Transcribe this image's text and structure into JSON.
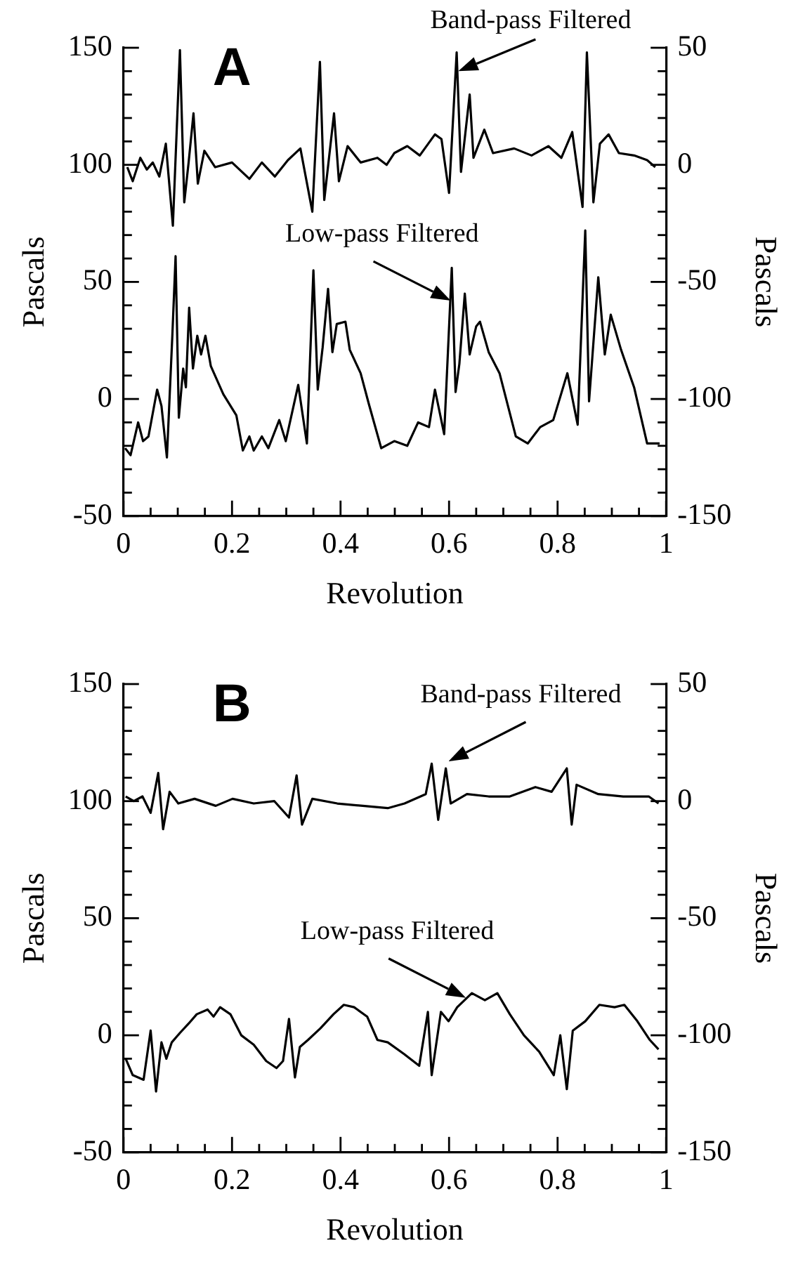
{
  "chart_data": [
    {
      "type": "line",
      "title": "A",
      "xlabel": "Revolution",
      "ylabel": "Pascals",
      "y2label": "Pascals",
      "xlim": [
        0,
        1
      ],
      "ylim": [
        -50,
        150
      ],
      "y2lim": [
        -150,
        50
      ],
      "xticks": [
        0,
        {
          "value": 0.05,
          "label": null
        },
        {
          "value": 0.1,
          "label": null
        },
        {
          "value": 0.15,
          "label": null
        },
        0.2,
        {
          "value": 0.25,
          "label": null
        },
        {
          "value": 0.3,
          "label": null
        },
        {
          "value": 0.35,
          "label": null
        },
        0.4,
        {
          "value": 0.45,
          "label": null
        },
        {
          "value": 0.5,
          "label": null
        },
        {
          "value": 0.55,
          "label": null
        },
        0.6,
        {
          "value": 0.65,
          "label": null
        },
        {
          "value": 0.7,
          "label": null
        },
        {
          "value": 0.75,
          "label": null
        },
        0.8,
        {
          "value": 0.85,
          "label": null
        },
        {
          "value": 0.9,
          "label": null
        },
        {
          "value": 0.95,
          "label": null
        },
        1
      ],
      "yticks": [
        -50,
        {
          "value": -40,
          "label": null
        },
        {
          "value": -30,
          "label": null
        },
        {
          "value": -20,
          "label": null
        },
        {
          "value": -10,
          "label": null
        },
        0,
        {
          "value": 10,
          "label": null
        },
        {
          "value": 20,
          "label": null
        },
        {
          "value": 30,
          "label": null
        },
        {
          "value": 40,
          "label": null
        },
        50,
        {
          "value": 60,
          "label": null
        },
        {
          "value": 70,
          "label": null
        },
        {
          "value": 80,
          "label": null
        },
        {
          "value": 90,
          "label": null
        },
        100,
        {
          "value": 110,
          "label": null
        },
        {
          "value": 120,
          "label": null
        },
        {
          "value": 130,
          "label": null
        },
        {
          "value": 140,
          "label": null
        },
        150
      ],
      "y2ticks": [
        -150,
        {
          "value": -140,
          "label": null
        },
        {
          "value": -130,
          "label": null
        },
        {
          "value": -120,
          "label": null
        },
        {
          "value": -110,
          "label": null
        },
        -100,
        {
          "value": -90,
          "label": null
        },
        {
          "value": -80,
          "label": null
        },
        {
          "value": -70,
          "label": null
        },
        {
          "value": -60,
          "label": null
        },
        -50,
        {
          "value": -40,
          "label": null
        },
        {
          "value": -30,
          "label": null
        },
        {
          "value": -20,
          "label": null
        },
        {
          "value": -10,
          "label": null
        },
        0,
        {
          "value": 10,
          "label": null
        },
        {
          "value": 20,
          "label": null
        },
        {
          "value": 30,
          "label": null
        },
        {
          "value": 40,
          "label": null
        },
        50
      ],
      "grid": false,
      "series": [
        {
          "color": "#000000",
          "x": [
            0.003,
            0.013,
            0.027,
            0.036,
            0.046,
            0.062,
            0.07,
            0.08,
            0.09,
            0.096,
            0.102,
            0.11,
            0.115,
            0.121,
            0.128,
            0.136,
            0.143,
            0.151,
            0.161,
            0.184,
            0.208,
            0.22,
            0.232,
            0.24,
            0.255,
            0.267,
            0.287,
            0.299,
            0.322,
            0.338,
            0.35,
            0.358,
            0.367,
            0.377,
            0.385,
            0.393,
            0.409,
            0.417,
            0.437,
            0.452,
            0.475,
            0.499,
            0.523,
            0.543,
            0.563,
            0.574,
            0.591,
            0.605,
            0.612,
            0.619,
            0.629,
            0.638,
            0.65,
            0.657,
            0.673,
            0.693,
            0.723,
            0.745,
            0.768,
            0.792,
            0.818,
            0.837,
            0.851,
            0.858,
            0.875,
            0.887,
            0.898,
            0.917,
            0.941,
            0.965,
            0.988
          ],
          "values": [
            -21,
            -24,
            -10,
            -18,
            -16,
            4,
            -3,
            -25,
            27,
            61,
            -8,
            13,
            5,
            39,
            13,
            27,
            19,
            27,
            14,
            2,
            -7,
            -22,
            -16,
            -22,
            -16,
            -21,
            -9,
            -18,
            6,
            -19,
            55,
            4,
            22,
            47,
            20,
            32,
            33,
            21,
            11,
            -2,
            -21,
            -18,
            -20,
            -10,
            -12,
            4,
            -15,
            56,
            3,
            15,
            45,
            19,
            31,
            33,
            20,
            11,
            -16,
            -19,
            -12,
            -9,
            11,
            -11,
            72,
            -1,
            52,
            19,
            36,
            21,
            5,
            -19,
            -19
          ]
        },
        {
          "color": "#000000",
          "axis": "y2",
          "x": [
            0.007,
            0.017,
            0.031,
            0.043,
            0.054,
            0.066,
            0.078,
            0.091,
            0.104,
            0.112,
            0.12,
            0.129,
            0.137,
            0.149,
            0.169,
            0.2,
            0.232,
            0.255,
            0.279,
            0.303,
            0.326,
            0.348,
            0.362,
            0.37,
            0.388,
            0.397,
            0.413,
            0.437,
            0.468,
            0.485,
            0.499,
            0.523,
            0.546,
            0.574,
            0.586,
            0.6,
            0.614,
            0.622,
            0.638,
            0.645,
            0.665,
            0.681,
            0.72,
            0.752,
            0.783,
            0.807,
            0.827,
            0.846,
            0.854,
            0.866,
            0.878,
            0.894,
            0.913,
            0.941,
            0.965,
            0.98
          ],
          "values": [
            -1,
            -7,
            3,
            -2,
            1,
            -5,
            9,
            -26,
            49,
            -16,
            1,
            22,
            -8,
            6,
            -1,
            1,
            -6,
            1,
            -5,
            2,
            7,
            -20,
            44,
            -15,
            22,
            -7,
            8,
            1,
            3,
            0,
            5,
            8,
            4,
            13,
            11,
            -12,
            48,
            -3,
            30,
            3,
            15,
            5,
            7,
            4,
            8,
            3,
            14,
            -18,
            48,
            -16,
            9,
            13,
            5,
            4,
            2,
            -1
          ]
        }
      ],
      "annotations": [
        {
          "text": "Band-pass Filtered",
          "x": 0.617,
          "y": 140
        },
        {
          "text": "Low-pass Filtered",
          "x": 0.603,
          "y": 42
        }
      ]
    },
    {
      "type": "line",
      "title": "B",
      "xlabel": "Revolution",
      "ylabel": "Pascals",
      "y2label": "Pascals",
      "xlim": [
        0,
        1
      ],
      "ylim": [
        -50,
        150
      ],
      "y2lim": [
        -150,
        50
      ],
      "xticks": [
        0,
        {
          "value": 0.05,
          "label": null
        },
        {
          "value": 0.1,
          "label": null
        },
        {
          "value": 0.15,
          "label": null
        },
        0.2,
        {
          "value": 0.25,
          "label": null
        },
        {
          "value": 0.3,
          "label": null
        },
        {
          "value": 0.35,
          "label": null
        },
        0.4,
        {
          "value": 0.45,
          "label": null
        },
        {
          "value": 0.5,
          "label": null
        },
        {
          "value": 0.55,
          "label": null
        },
        0.6,
        {
          "value": 0.65,
          "label": null
        },
        {
          "value": 0.7,
          "label": null
        },
        {
          "value": 0.75,
          "label": null
        },
        0.8,
        {
          "value": 0.85,
          "label": null
        },
        {
          "value": 0.9,
          "label": null
        },
        {
          "value": 0.95,
          "label": null
        },
        1
      ],
      "yticks": [
        -50,
        {
          "value": -40,
          "label": null
        },
        {
          "value": -30,
          "label": null
        },
        {
          "value": -20,
          "label": null
        },
        {
          "value": -10,
          "label": null
        },
        0,
        {
          "value": 10,
          "label": null
        },
        {
          "value": 20,
          "label": null
        },
        {
          "value": 30,
          "label": null
        },
        {
          "value": 40,
          "label": null
        },
        50,
        {
          "value": 60,
          "label": null
        },
        {
          "value": 70,
          "label": null
        },
        {
          "value": 80,
          "label": null
        },
        {
          "value": 90,
          "label": null
        },
        100,
        {
          "value": 110,
          "label": null
        },
        {
          "value": 120,
          "label": null
        },
        {
          "value": 130,
          "label": null
        },
        {
          "value": 140,
          "label": null
        },
        150
      ],
      "y2ticks": [
        -150,
        {
          "value": -140,
          "label": null
        },
        {
          "value": -130,
          "label": null
        },
        {
          "value": -120,
          "label": null
        },
        {
          "value": -110,
          "label": null
        },
        -100,
        {
          "value": -90,
          "label": null
        },
        {
          "value": -80,
          "label": null
        },
        {
          "value": -70,
          "label": null
        },
        {
          "value": -60,
          "label": null
        },
        -50,
        {
          "value": -40,
          "label": null
        },
        {
          "value": -30,
          "label": null
        },
        {
          "value": -20,
          "label": null
        },
        {
          "value": -10,
          "label": null
        },
        0,
        {
          "value": 10,
          "label": null
        },
        {
          "value": 20,
          "label": null
        },
        {
          "value": 30,
          "label": null
        },
        {
          "value": 40,
          "label": null
        },
        50
      ],
      "grid": false,
      "series": [
        {
          "color": "#000000",
          "x": [
            0.004,
            0.017,
            0.037,
            0.05,
            0.06,
            0.07,
            0.079,
            0.089,
            0.104,
            0.12,
            0.135,
            0.155,
            0.166,
            0.178,
            0.197,
            0.217,
            0.24,
            0.263,
            0.282,
            0.294,
            0.305,
            0.316,
            0.325,
            0.34,
            0.363,
            0.387,
            0.406,
            0.425,
            0.449,
            0.468,
            0.487,
            0.517,
            0.545,
            0.561,
            0.568,
            0.585,
            0.599,
            0.615,
            0.642,
            0.666,
            0.689,
            0.712,
            0.738,
            0.766,
            0.793,
            0.805,
            0.817,
            0.828,
            0.851,
            0.877,
            0.905,
            0.923,
            0.947,
            0.97,
            0.986
          ],
          "values": [
            -10,
            -17,
            -19,
            2,
            -24,
            -3,
            -10,
            -3,
            1,
            5,
            9,
            11,
            8,
            12,
            9,
            0,
            -4,
            -11,
            -14,
            -11,
            7,
            -18,
            -5,
            -2,
            3,
            9,
            13,
            12,
            8,
            -2,
            -3,
            -8,
            -13,
            10,
            -17,
            10,
            6,
            12,
            18,
            15,
            18,
            9,
            0,
            -7,
            -17,
            0,
            -23,
            2,
            6,
            13,
            12,
            13,
            6,
            -2,
            -6
          ]
        },
        {
          "color": "#000000",
          "axis": "y2",
          "x": [
            0.004,
            0.019,
            0.035,
            0.05,
            0.064,
            0.073,
            0.085,
            0.101,
            0.131,
            0.17,
            0.201,
            0.24,
            0.278,
            0.305,
            0.319,
            0.329,
            0.348,
            0.394,
            0.441,
            0.487,
            0.518,
            0.557,
            0.568,
            0.58,
            0.594,
            0.603,
            0.633,
            0.673,
            0.712,
            0.759,
            0.789,
            0.817,
            0.826,
            0.835,
            0.875,
            0.921,
            0.968,
            0.986
          ],
          "values": [
            2,
            0,
            2,
            -5,
            12,
            -12,
            4,
            -1,
            1,
            -2,
            1,
            -1,
            0,
            -7,
            11,
            -10,
            1,
            -1,
            -2,
            -3,
            -1,
            3,
            16,
            -8,
            14,
            -1,
            3,
            2,
            2,
            6,
            4,
            14,
            -10,
            7,
            3,
            2,
            2,
            -1
          ]
        }
      ],
      "annotations": [
        {
          "text": "Band-pass Filtered",
          "x": 0.599,
          "y": 117
        },
        {
          "text": "Low-pass Filtered",
          "x": 0.631,
          "y": 16
        }
      ]
    }
  ]
}
